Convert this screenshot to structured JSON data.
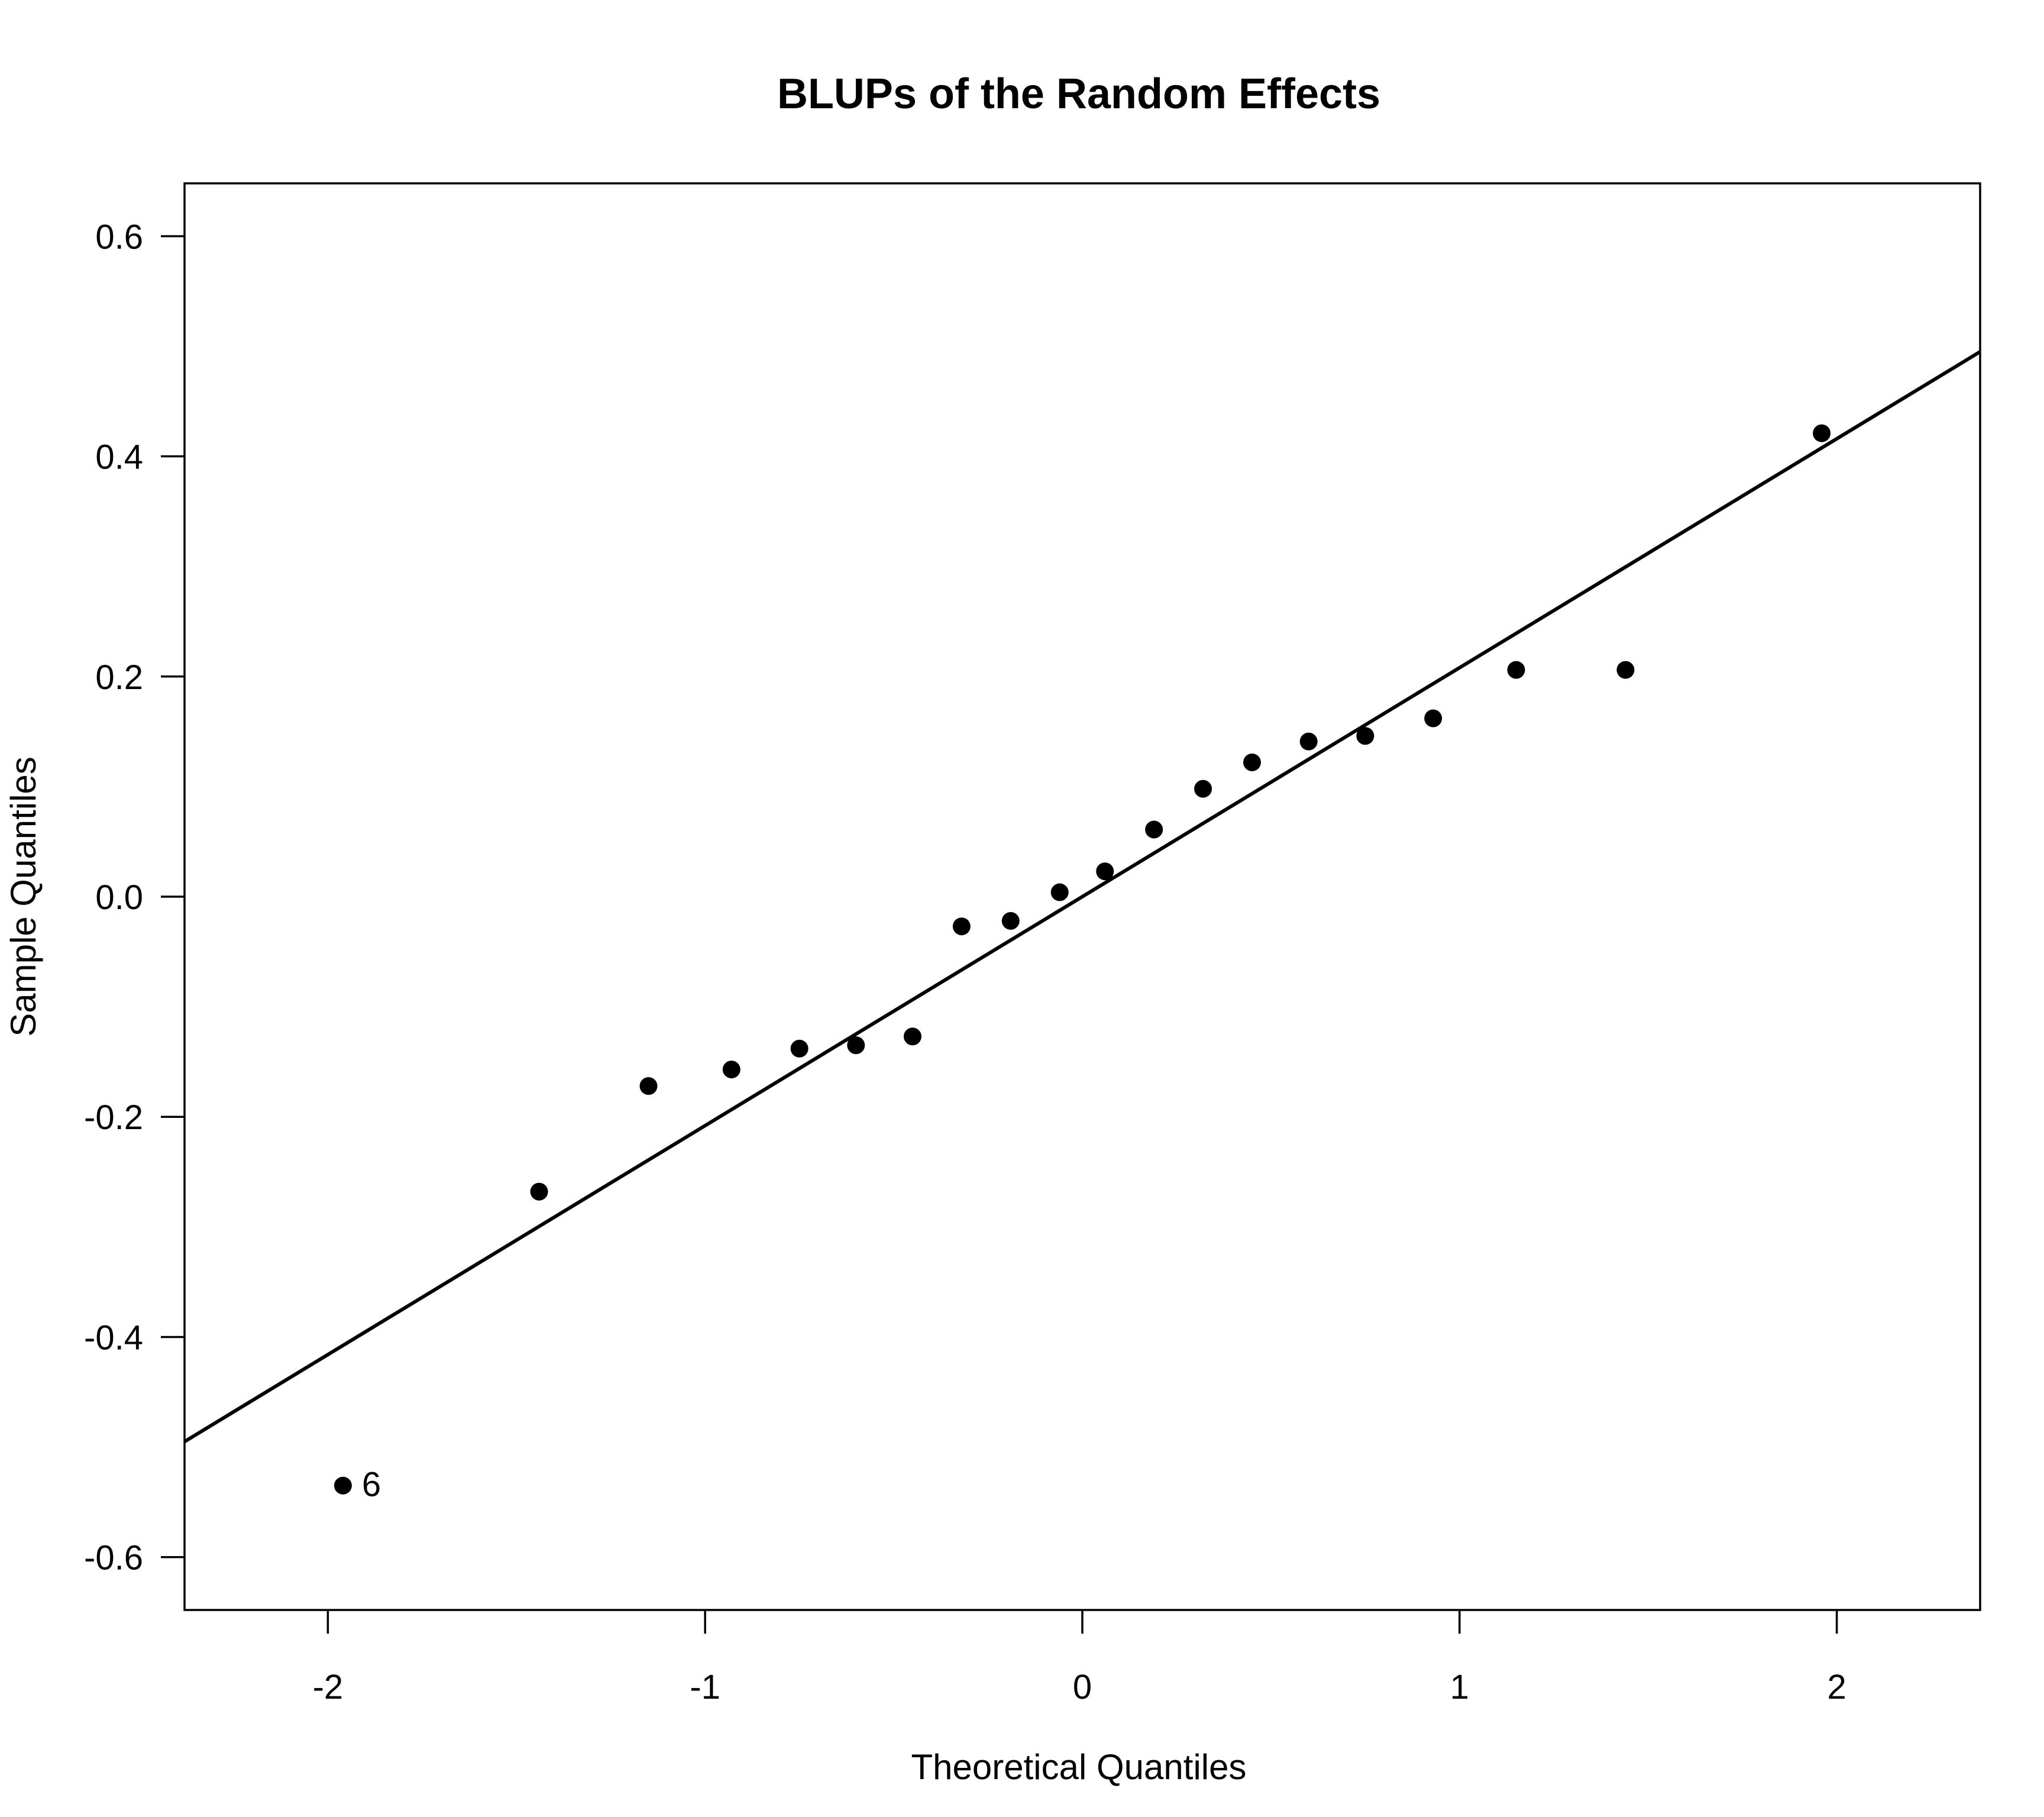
{
  "chart_data": {
    "type": "scatter",
    "title": "BLUPs of the Random Effects",
    "xlabel": "Theoretical Quantiles",
    "ylabel": "Sample Quantiles",
    "xlim": [
      -2.38,
      2.38
    ],
    "ylim": [
      -0.648,
      0.648
    ],
    "xticks": [
      -2,
      -1,
      0,
      1,
      2
    ],
    "xtick_labels": [
      "-2",
      "-1",
      "0",
      "1",
      "2"
    ],
    "yticks": [
      -0.6,
      -0.4,
      -0.2,
      0.0,
      0.2,
      0.4,
      0.6
    ],
    "ytick_labels": [
      "-0.6",
      "-0.4",
      "-0.2",
      "0.0",
      "0.2",
      "0.4",
      "0.6"
    ],
    "grid": false,
    "points": [
      {
        "x": -1.96,
        "y": -0.535
      },
      {
        "x": -1.44,
        "y": -0.268
      },
      {
        "x": -1.15,
        "y": -0.172
      },
      {
        "x": -0.93,
        "y": -0.157
      },
      {
        "x": -0.75,
        "y": -0.138
      },
      {
        "x": -0.6,
        "y": -0.135
      },
      {
        "x": -0.45,
        "y": -0.127
      },
      {
        "x": -0.32,
        "y": -0.027
      },
      {
        "x": -0.19,
        "y": -0.022
      },
      {
        "x": -0.06,
        "y": 0.004
      },
      {
        "x": 0.06,
        "y": 0.023
      },
      {
        "x": 0.19,
        "y": 0.061
      },
      {
        "x": 0.32,
        "y": 0.098
      },
      {
        "x": 0.45,
        "y": 0.122
      },
      {
        "x": 0.6,
        "y": 0.141
      },
      {
        "x": 0.75,
        "y": 0.146
      },
      {
        "x": 0.93,
        "y": 0.162
      },
      {
        "x": 1.15,
        "y": 0.206
      },
      {
        "x": 1.44,
        "y": 0.206
      },
      {
        "x": 1.96,
        "y": 0.421
      }
    ],
    "reference_line": {
      "intercept": 0.0,
      "slope": 0.208
    },
    "annotations": [
      {
        "text": "6",
        "x": -1.96,
        "y": -0.535
      }
    ]
  }
}
